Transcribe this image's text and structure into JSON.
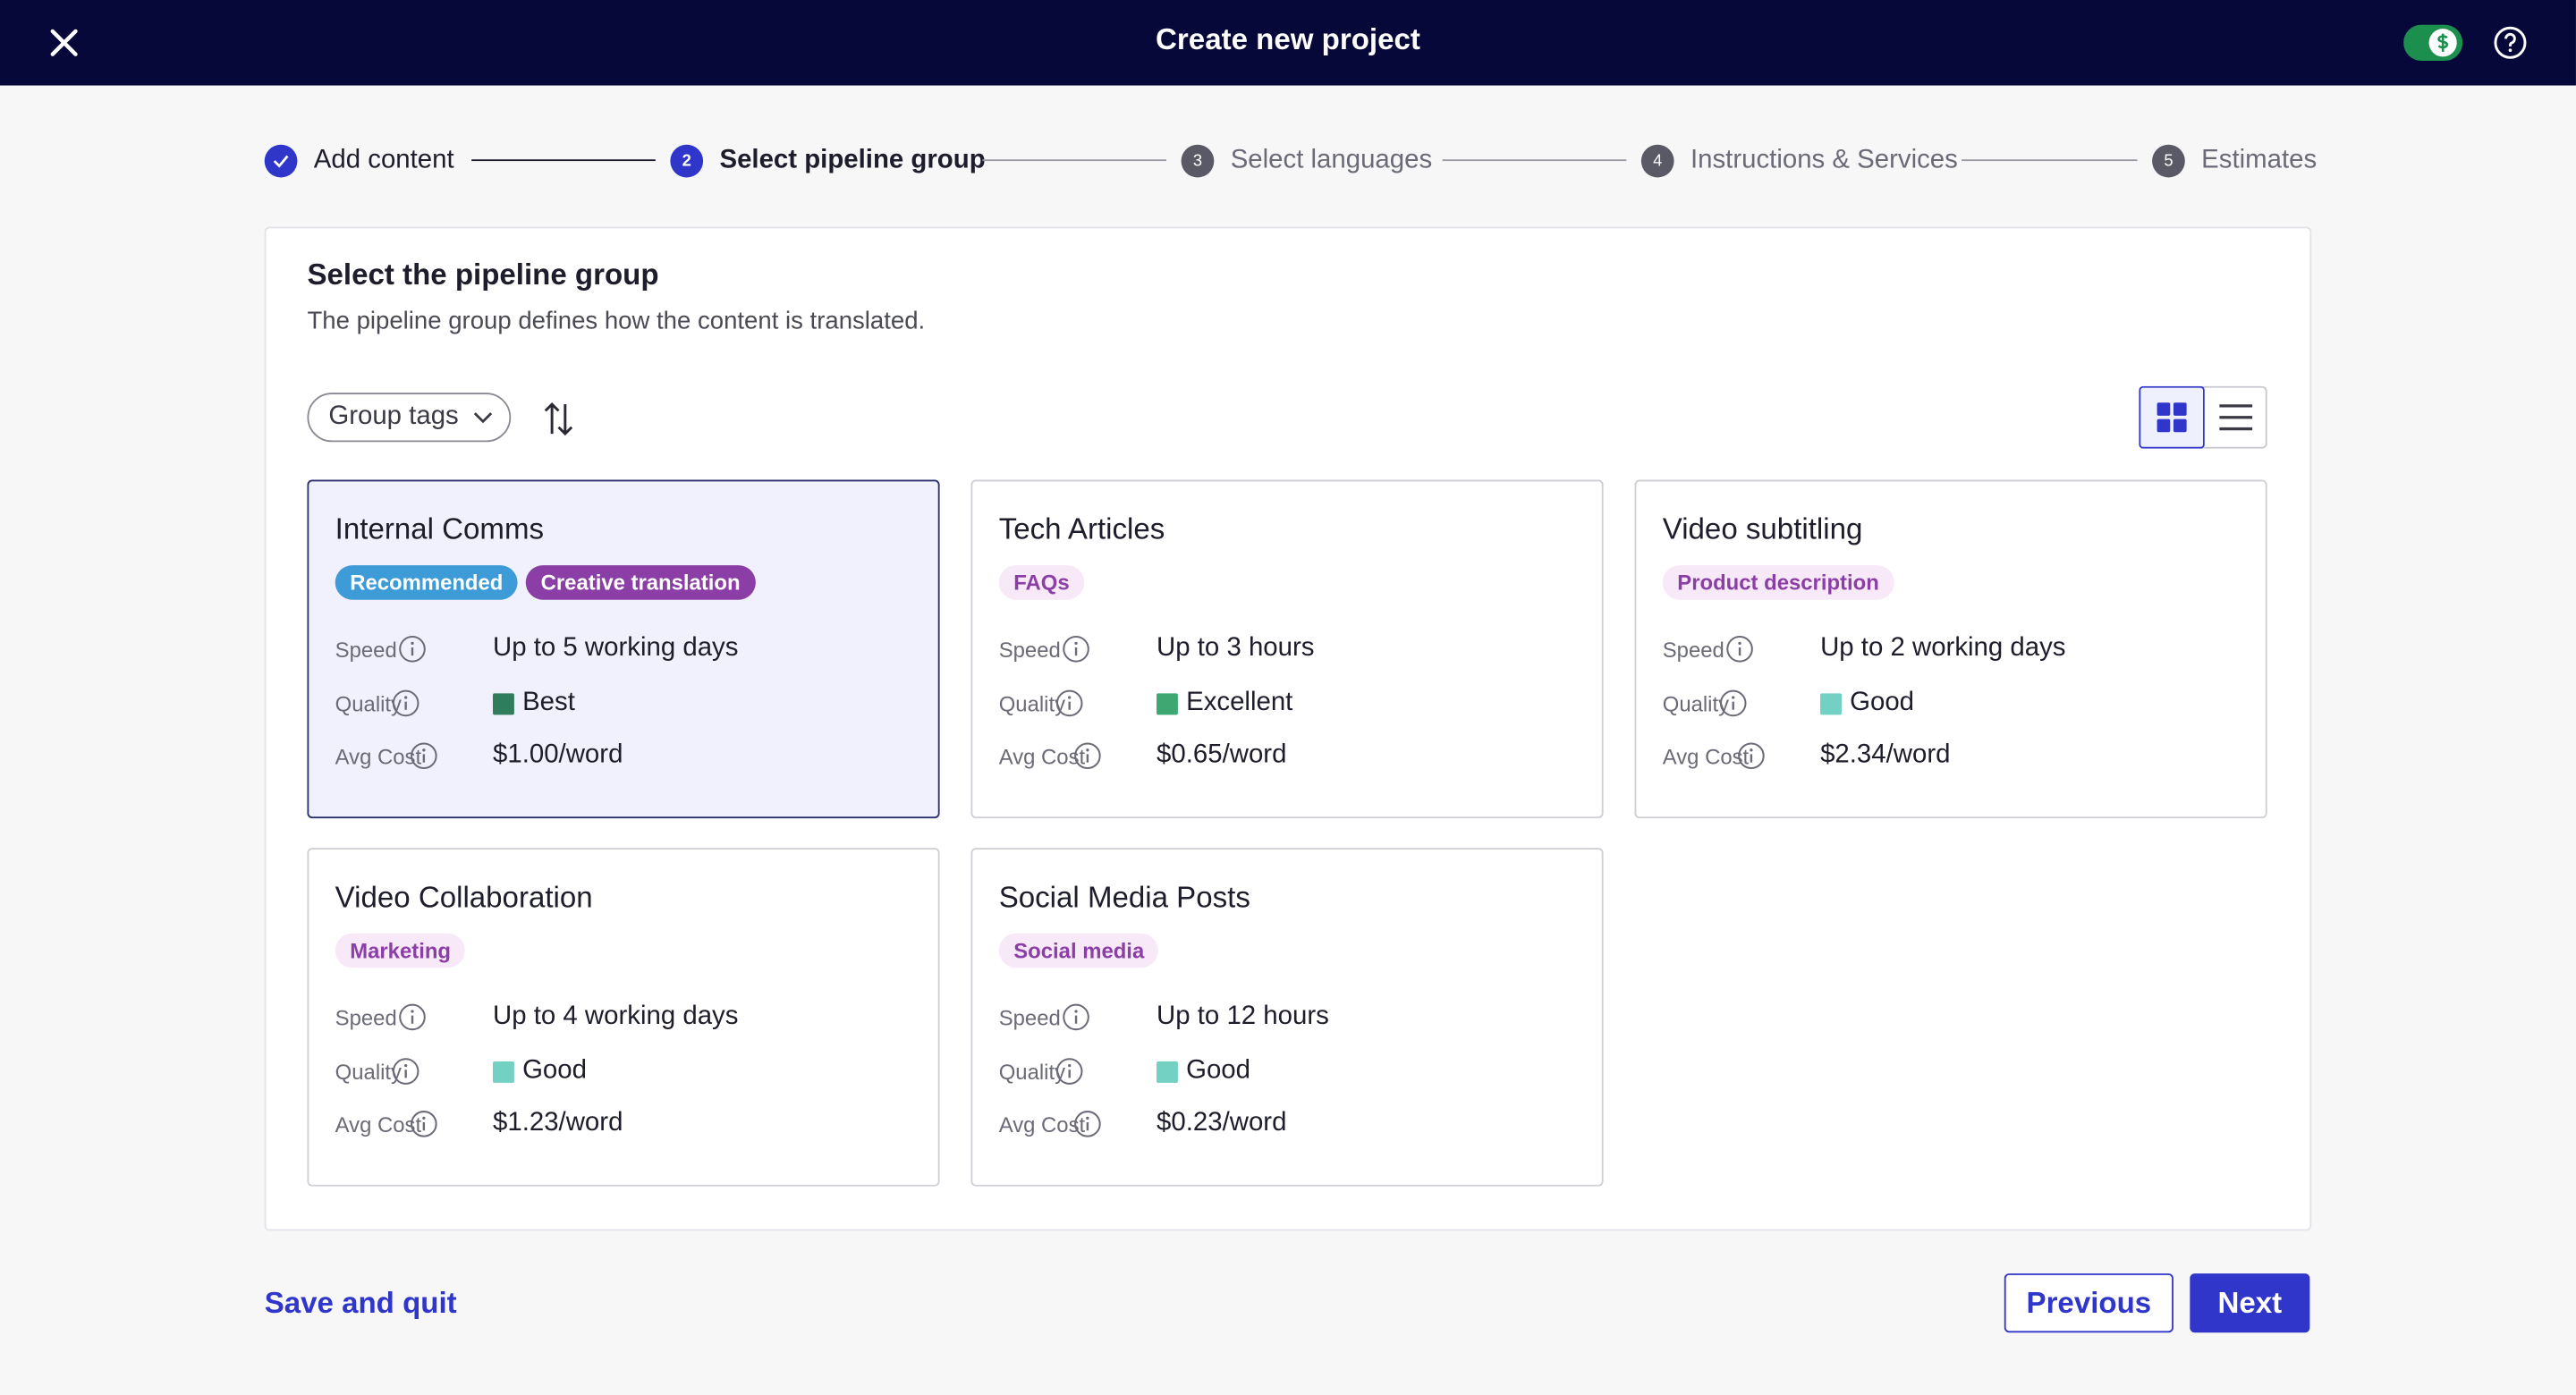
{
  "header": {
    "title": "Create new project"
  },
  "steps": [
    {
      "label": "Add content",
      "state": "done"
    },
    {
      "number": "2",
      "label": "Select pipeline group",
      "state": "current"
    },
    {
      "number": "3",
      "label": "Select languages",
      "state": "todo"
    },
    {
      "number": "4",
      "label": "Instructions & Services",
      "state": "todo"
    },
    {
      "number": "5",
      "label": "Estimates",
      "state": "todo"
    }
  ],
  "panel": {
    "title": "Select the pipeline group",
    "description": "The pipeline group defines how the content is translated.",
    "filter": "Group tags"
  },
  "field_labels": {
    "speed": "Speed",
    "quality": "Quality",
    "cost": "Avg Cost"
  },
  "cards": [
    {
      "title": "Internal Comms",
      "selected": true,
      "tags": [
        {
          "text": "Recommended",
          "background": "#3d9bd8",
          "color": "#ffffff"
        },
        {
          "text": "Creative translation",
          "background": "#8b3fa6",
          "color": "#ffffff"
        }
      ],
      "speed": "Up to 5 working days",
      "quality": "Best",
      "quality_color": "#2f7d5a",
      "cost": "$1.00/word"
    },
    {
      "title": "Tech Articles",
      "selected": false,
      "tags": [
        {
          "text": "FAQs",
          "background": "#f7e9f8",
          "color": "#8b3fa6"
        }
      ],
      "speed": "Up to 3 hours",
      "quality": "Excellent",
      "quality_color": "#3fa872",
      "cost": "$0.65/word"
    },
    {
      "title": "Video subtitling",
      "selected": false,
      "tags": [
        {
          "text": "Product description",
          "background": "#f7e9f8",
          "color": "#8b3fa6"
        }
      ],
      "speed": "Up to 2 working days",
      "quality": "Good",
      "quality_color": "#72d1c2",
      "cost": "$2.34/word"
    },
    {
      "title": "Video Collaboration",
      "selected": false,
      "tags": [
        {
          "text": "Marketing",
          "background": "#f7e9f8",
          "color": "#8b3fa6"
        }
      ],
      "speed": "Up to 4 working days",
      "quality": "Good",
      "quality_color": "#72d1c2",
      "cost": "$1.23/word"
    },
    {
      "title": "Social Media Posts",
      "selected": false,
      "tags": [
        {
          "text": "Social media",
          "background": "#f7e9f8",
          "color": "#8b3fa6"
        }
      ],
      "speed": "Up to 12 hours",
      "quality": "Good",
      "quality_color": "#72d1c2",
      "cost": "$0.23/word"
    }
  ],
  "footer": {
    "save": "Save and quit",
    "previous": "Previous",
    "next": "Next"
  }
}
